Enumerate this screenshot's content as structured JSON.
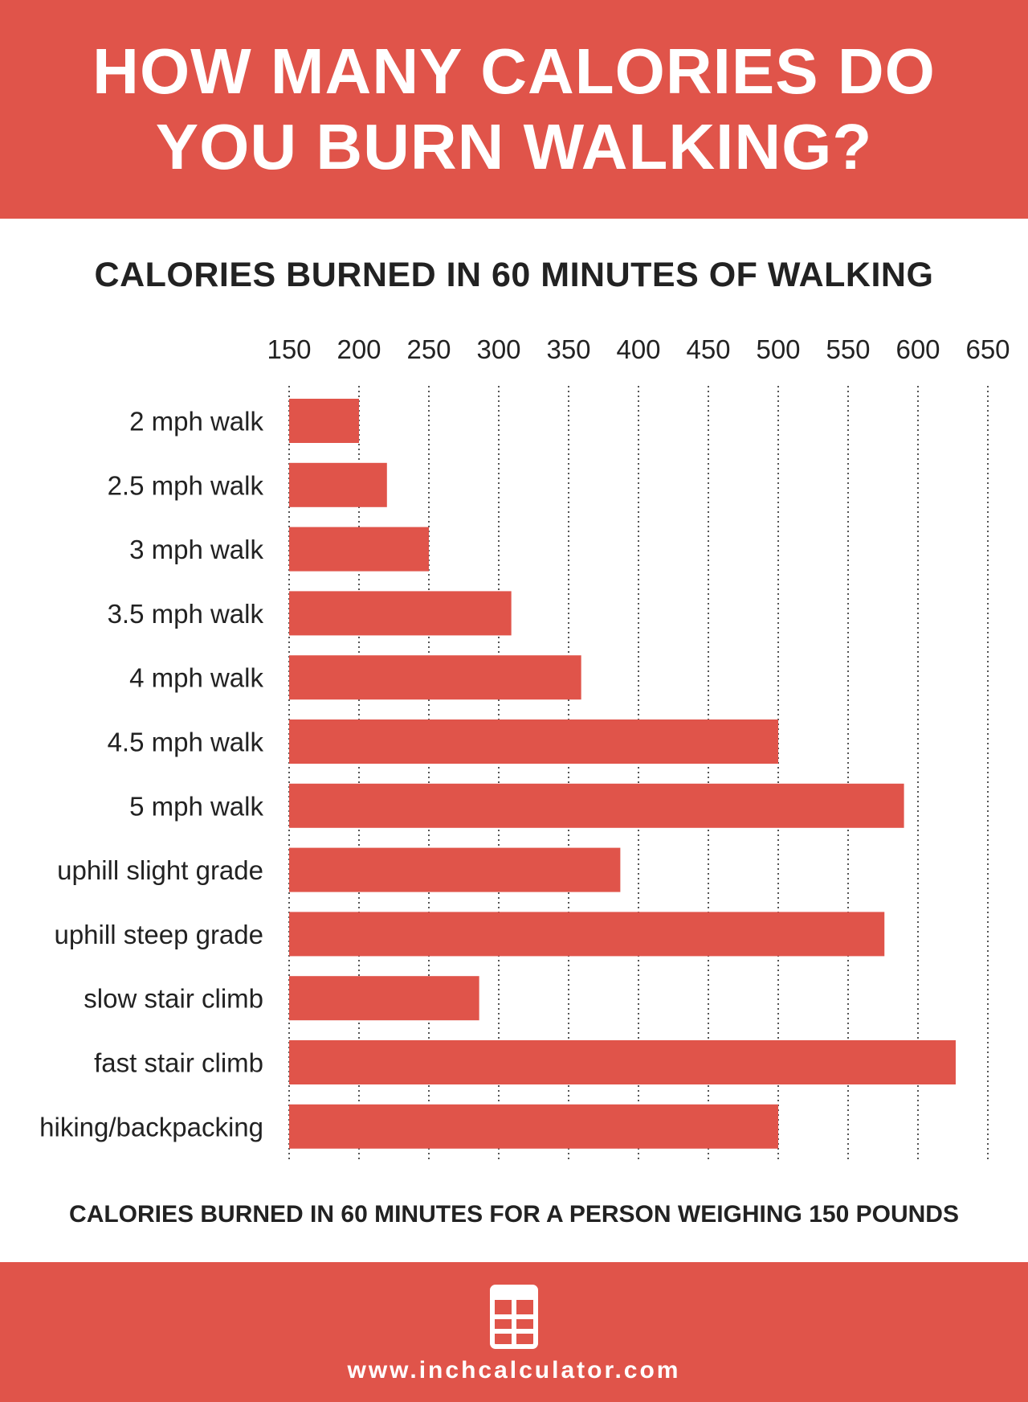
{
  "header": {
    "title_line1": "HOW MANY CALORIES DO",
    "title_line2": "YOU BURN WALKING?"
  },
  "colors": {
    "accent": "#e0544a",
    "text_dark": "#222222",
    "background": "#ffffff"
  },
  "footnote": "CALORIES BURNED IN 60 MINUTES FOR A PERSON WEIGHING 150 POUNDS",
  "footer": {
    "icon": "calculator-icon",
    "url": "www.inchcalculator.com"
  },
  "chart_data": {
    "type": "bar",
    "orientation": "horizontal",
    "title": "CALORIES BURNED IN 60 MINUTES OF WALKING",
    "categories": [
      "2 mph walk",
      "2.5 mph walk",
      "3 mph walk",
      "3.5 mph walk",
      "4 mph walk",
      "4.5 mph walk",
      "5 mph walk",
      "uphill slight grade",
      "uphill steep grade",
      "slow stair climb",
      "fast stair climb",
      "hiking/backpacking"
    ],
    "values": [
      200,
      220,
      250,
      309,
      359,
      500,
      590,
      387,
      576,
      286,
      627,
      500
    ],
    "xlim": [
      150,
      650
    ],
    "xticks": [
      150,
      200,
      250,
      300,
      350,
      400,
      450,
      500,
      550,
      600,
      650
    ],
    "xtick_position": "top",
    "grid": "vertical dotted",
    "bar_color": "#e0544a"
  }
}
